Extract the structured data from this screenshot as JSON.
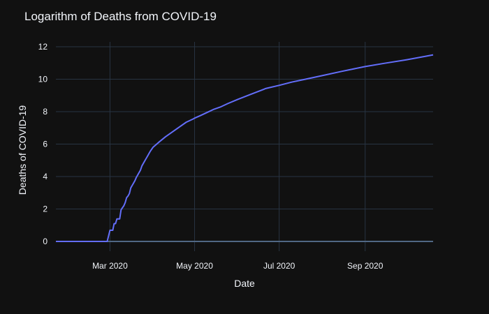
{
  "chart_data": {
    "type": "line",
    "title": "Logarithm of Deaths from COVID-19",
    "xlabel": "Date",
    "ylabel": "Deaths of COVID-19",
    "x_type": "date",
    "xlim": [
      "2020-01-22",
      "2020-10-20"
    ],
    "ylim": [
      -0.6,
      12.3
    ],
    "x_ticks": [
      {
        "value": "2020-03-01",
        "label": "Mar 2020"
      },
      {
        "value": "2020-05-01",
        "label": "May 2020"
      },
      {
        "value": "2020-07-01",
        "label": "Jul 2020"
      },
      {
        "value": "2020-09-01",
        "label": "Sep 2020"
      }
    ],
    "y_ticks": [
      0,
      2,
      4,
      6,
      8,
      10,
      12
    ],
    "grid": true,
    "legend": "none",
    "colors": {
      "background": "#111111",
      "series": "#636efa",
      "grid": "#283442",
      "zero_line": "#506784",
      "text": "#f2f5fa"
    },
    "series": [
      {
        "color": "#636efa",
        "x": [
          "2020-01-22",
          "2020-02-28",
          "2020-03-01",
          "2020-03-02",
          "2020-03-03",
          "2020-03-04",
          "2020-03-05",
          "2020-03-06",
          "2020-03-07",
          "2020-03-08",
          "2020-03-09",
          "2020-03-10",
          "2020-03-11",
          "2020-03-12",
          "2020-03-13",
          "2020-03-14",
          "2020-03-15",
          "2020-03-16",
          "2020-03-17",
          "2020-03-18",
          "2020-03-19",
          "2020-03-20",
          "2020-03-21",
          "2020-03-22",
          "2020-03-23",
          "2020-03-24",
          "2020-03-25",
          "2020-03-26",
          "2020-03-27",
          "2020-03-28",
          "2020-03-29",
          "2020-03-30",
          "2020-04-01",
          "2020-04-05",
          "2020-04-10",
          "2020-04-15",
          "2020-04-20",
          "2020-04-25",
          "2020-04-30",
          "2020-05-01",
          "2020-05-05",
          "2020-05-10",
          "2020-05-15",
          "2020-05-20",
          "2020-05-25",
          "2020-06-01",
          "2020-06-10",
          "2020-06-20",
          "2020-06-21",
          "2020-07-01",
          "2020-07-10",
          "2020-07-20",
          "2020-08-01",
          "2020-08-15",
          "2020-09-01",
          "2020-09-15",
          "2020-10-01",
          "2020-10-15",
          "2020-10-20"
        ],
        "y": [
          0,
          0,
          0.69,
          0.69,
          0.69,
          1.1,
          1.1,
          1.39,
          1.39,
          1.39,
          1.95,
          2.08,
          2.2,
          2.4,
          2.7,
          2.8,
          2.95,
          3.3,
          3.45,
          3.6,
          3.75,
          3.95,
          4.1,
          4.25,
          4.4,
          4.65,
          4.8,
          4.95,
          5.1,
          5.25,
          5.4,
          5.55,
          5.8,
          6.1,
          6.45,
          6.75,
          7.05,
          7.35,
          7.55,
          7.6,
          7.75,
          7.95,
          8.15,
          8.3,
          8.5,
          8.75,
          9.05,
          9.38,
          9.42,
          9.62,
          9.82,
          10.0,
          10.22,
          10.48,
          10.78,
          10.98,
          11.2,
          11.42,
          11.5
        ]
      }
    ]
  }
}
